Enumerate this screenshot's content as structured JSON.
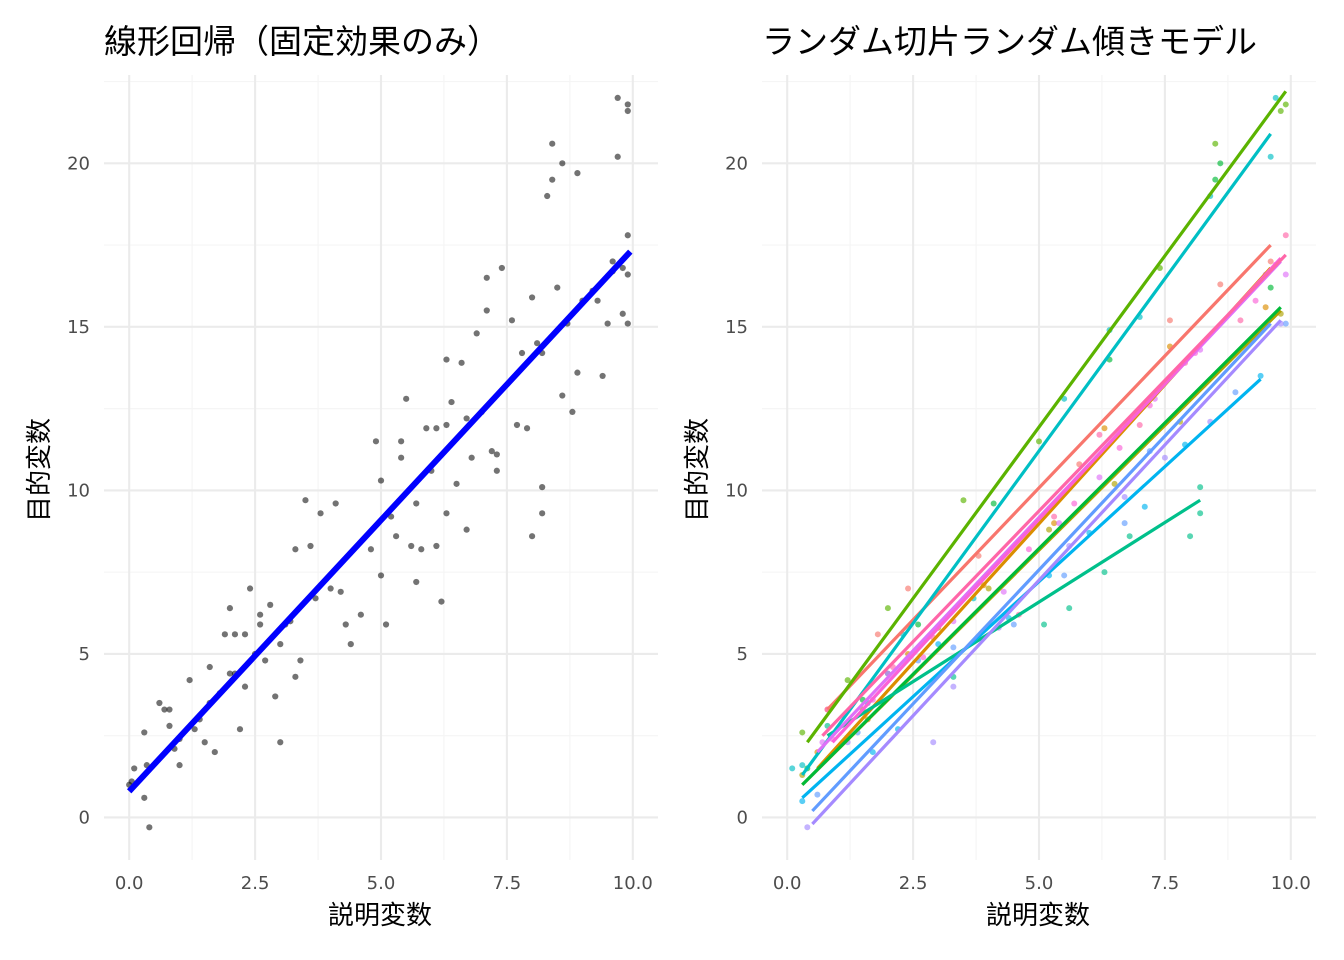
{
  "figure": {
    "panels": [
      {
        "title": "線形回帰（固定効果のみ）",
        "xlabel": "説明変数",
        "ylabel": "目的変数"
      },
      {
        "title": "ランダム切片ランダム傾きモデル",
        "xlabel": "説明変数",
        "ylabel": "目的変数"
      }
    ]
  },
  "chart_data": [
    {
      "type": "scatter",
      "title": "線形回帰（固定効果のみ）",
      "xlabel": "説明変数",
      "ylabel": "目的変数",
      "xlim": [
        -0.5,
        10.5
      ],
      "ylim": [
        -1.3,
        22.7
      ],
      "xticks": [
        "0.0",
        "2.5",
        "5.0",
        "7.5",
        "10.0"
      ],
      "yticks": [
        "0",
        "5",
        "10",
        "15",
        "20"
      ],
      "grid": true,
      "point_color": "#000000",
      "points": [
        [
          0.0,
          1.0
        ],
        [
          0.1,
          1.5
        ],
        [
          0.05,
          1.1
        ],
        [
          0.3,
          0.6
        ],
        [
          0.4,
          -0.3
        ],
        [
          0.3,
          2.6
        ],
        [
          0.35,
          1.6
        ],
        [
          0.6,
          3.5
        ],
        [
          0.7,
          3.3
        ],
        [
          0.8,
          3.3
        ],
        [
          0.8,
          2.8
        ],
        [
          0.9,
          2.1
        ],
        [
          1.0,
          1.6
        ],
        [
          1.0,
          2.4
        ],
        [
          1.2,
          4.2
        ],
        [
          1.3,
          2.7
        ],
        [
          1.4,
          3.0
        ],
        [
          1.5,
          2.3
        ],
        [
          1.6,
          3.5
        ],
        [
          1.6,
          4.6
        ],
        [
          1.7,
          2.0
        ],
        [
          1.8,
          3.8
        ],
        [
          1.9,
          5.6
        ],
        [
          2.0,
          6.4
        ],
        [
          2.1,
          4.4
        ],
        [
          2.0,
          4.4
        ],
        [
          2.1,
          5.6
        ],
        [
          2.2,
          2.7
        ],
        [
          2.3,
          4.0
        ],
        [
          2.3,
          5.6
        ],
        [
          2.4,
          7.0
        ],
        [
          2.5,
          5.0
        ],
        [
          2.6,
          6.2
        ],
        [
          2.6,
          5.9
        ],
        [
          2.7,
          4.8
        ],
        [
          2.8,
          6.5
        ],
        [
          2.9,
          3.7
        ],
        [
          3.0,
          2.3
        ],
        [
          3.0,
          5.3
        ],
        [
          3.1,
          5.9
        ],
        [
          3.2,
          6.0
        ],
        [
          3.3,
          4.3
        ],
        [
          3.3,
          8.2
        ],
        [
          3.4,
          4.8
        ],
        [
          3.5,
          9.7
        ],
        [
          3.6,
          8.3
        ],
        [
          3.7,
          6.7
        ],
        [
          3.8,
          9.3
        ],
        [
          4.0,
          7.0
        ],
        [
          4.1,
          9.6
        ],
        [
          4.2,
          6.9
        ],
        [
          4.3,
          5.9
        ],
        [
          4.4,
          5.3
        ],
        [
          4.6,
          6.2
        ],
        [
          4.8,
          8.2
        ],
        [
          4.9,
          11.5
        ],
        [
          5.0,
          7.4
        ],
        [
          5.0,
          10.3
        ],
        [
          5.1,
          5.9
        ],
        [
          5.2,
          9.2
        ],
        [
          5.3,
          8.6
        ],
        [
          5.4,
          11.0
        ],
        [
          5.4,
          11.5
        ],
        [
          5.5,
          12.8
        ],
        [
          5.6,
          8.3
        ],
        [
          5.7,
          7.2
        ],
        [
          5.7,
          9.6
        ],
        [
          5.8,
          8.2
        ],
        [
          5.9,
          11.9
        ],
        [
          6.0,
          10.6
        ],
        [
          6.1,
          8.3
        ],
        [
          6.1,
          11.9
        ],
        [
          6.2,
          6.6
        ],
        [
          6.3,
          12.0
        ],
        [
          6.3,
          14.0
        ],
        [
          6.3,
          9.3
        ],
        [
          6.4,
          12.7
        ],
        [
          6.5,
          10.2
        ],
        [
          6.6,
          13.9
        ],
        [
          6.7,
          8.8
        ],
        [
          6.7,
          12.2
        ],
        [
          6.8,
          11.0
        ],
        [
          6.9,
          14.8
        ],
        [
          7.0,
          12.4
        ],
        [
          7.1,
          15.5
        ],
        [
          7.1,
          16.5
        ],
        [
          7.2,
          11.2
        ],
        [
          7.3,
          11.1
        ],
        [
          7.3,
          10.6
        ],
        [
          7.4,
          16.8
        ],
        [
          7.6,
          15.2
        ],
        [
          7.7,
          12.0
        ],
        [
          7.8,
          14.2
        ],
        [
          7.9,
          11.9
        ],
        [
          8.0,
          8.6
        ],
        [
          8.0,
          15.9
        ],
        [
          8.1,
          14.5
        ],
        [
          8.2,
          9.3
        ],
        [
          8.2,
          10.1
        ],
        [
          8.2,
          14.2
        ],
        [
          8.3,
          19.0
        ],
        [
          8.4,
          20.6
        ],
        [
          8.4,
          19.5
        ],
        [
          8.5,
          16.2
        ],
        [
          8.6,
          20.0
        ],
        [
          8.6,
          12.9
        ],
        [
          8.7,
          15.1
        ],
        [
          8.8,
          12.4
        ],
        [
          8.9,
          13.6
        ],
        [
          8.9,
          19.7
        ],
        [
          9.0,
          15.8
        ],
        [
          9.2,
          16.1
        ],
        [
          9.3,
          15.8
        ],
        [
          9.4,
          13.5
        ],
        [
          9.5,
          15.1
        ],
        [
          9.6,
          16.7
        ],
        [
          9.6,
          17.0
        ],
        [
          9.7,
          20.2
        ],
        [
          9.7,
          22.0
        ],
        [
          9.8,
          16.8
        ],
        [
          9.8,
          15.4
        ],
        [
          9.9,
          21.6
        ],
        [
          9.9,
          21.8
        ],
        [
          9.9,
          17.8
        ],
        [
          9.9,
          15.1
        ],
        [
          9.9,
          16.6
        ]
      ],
      "fit_line": {
        "color": "#0000ff",
        "x": [
          0.0,
          9.95
        ],
        "y": [
          0.8,
          17.3
        ]
      }
    },
    {
      "type": "scatter",
      "title": "ランダム切片ランダム傾きモデル",
      "xlabel": "説明変数",
      "ylabel": "目的変数",
      "xlim": [
        -0.5,
        10.5
      ],
      "ylim": [
        -1.3,
        22.7
      ],
      "xticks": [
        "0.0",
        "2.5",
        "5.0",
        "7.5",
        "10.0"
      ],
      "yticks": [
        "0",
        "5",
        "10",
        "15",
        "20"
      ],
      "grid": true,
      "series": [
        {
          "color": "#F8766D",
          "line": [
            [
              0.8,
              3.3
            ],
            [
              9.6,
              17.5
            ]
          ],
          "points": [
            [
              0.8,
              3.3
            ],
            [
              1.8,
              5.6
            ],
            [
              2.4,
              7.0
            ],
            [
              3.8,
              8.0
            ],
            [
              5.8,
              10.8
            ],
            [
              7.6,
              15.2
            ],
            [
              8.6,
              16.3
            ],
            [
              9.6,
              17.0
            ]
          ]
        },
        {
          "color": "#DB8E00",
          "line": [
            [
              0.6,
              1.5
            ],
            [
              9.6,
              16.8
            ]
          ],
          "points": [
            [
              0.6,
              2.0
            ],
            [
              1.6,
              3.0
            ],
            [
              2.4,
              5.0
            ],
            [
              3.9,
              7.1
            ],
            [
              5.3,
              9.0
            ],
            [
              6.3,
              11.9
            ],
            [
              7.6,
              14.4
            ],
            [
              9.5,
              15.6
            ]
          ]
        },
        {
          "color": "#AEA200",
          "line": [
            [
              0.3,
              1.0
            ],
            [
              9.8,
              15.5
            ]
          ],
          "points": [
            [
              0.3,
              1.3
            ],
            [
              1.5,
              3.3
            ],
            [
              3.0,
              5.8
            ],
            [
              4.0,
              7.0
            ],
            [
              5.2,
              8.8
            ],
            [
              6.5,
              10.2
            ],
            [
              7.8,
              12.1
            ],
            [
              9.8,
              15.4
            ]
          ]
        },
        {
          "color": "#5BB300",
          "line": [
            [
              0.4,
              2.3
            ],
            [
              9.9,
              22.2
            ]
          ],
          "points": [
            [
              0.3,
              2.6
            ],
            [
              1.2,
              4.2
            ],
            [
              2.0,
              6.4
            ],
            [
              3.5,
              9.7
            ],
            [
              5.0,
              11.5
            ],
            [
              7.4,
              16.8
            ],
            [
              8.5,
              20.6
            ],
            [
              9.9,
              21.8
            ],
            [
              9.8,
              21.6
            ]
          ]
        },
        {
          "color": "#00BA38",
          "line": [
            [
              0.3,
              1.0
            ],
            [
              9.8,
              15.6
            ]
          ],
          "points": [
            [
              0.4,
              1.5
            ],
            [
              1.5,
              3.6
            ],
            [
              2.6,
              5.9
            ],
            [
              4.1,
              9.6
            ],
            [
              6.4,
              14.0
            ],
            [
              8.5,
              19.5
            ],
            [
              8.6,
              20.0
            ],
            [
              9.6,
              16.2
            ]
          ]
        },
        {
          "color": "#00C08B",
          "line": [
            [
              0.8,
              2.5
            ],
            [
              8.2,
              9.7
            ]
          ],
          "points": [
            [
              0.8,
              2.8
            ],
            [
              2.0,
              4.4
            ],
            [
              3.3,
              4.3
            ],
            [
              5.1,
              5.9
            ],
            [
              5.6,
              6.4
            ],
            [
              6.3,
              7.5
            ],
            [
              6.8,
              8.6
            ],
            [
              8.0,
              8.6
            ],
            [
              8.2,
              9.3
            ],
            [
              8.2,
              10.1
            ]
          ]
        },
        {
          "color": "#00BFC4",
          "line": [
            [
              0.3,
              1.3
            ],
            [
              9.6,
              20.9
            ]
          ],
          "points": [
            [
              0.1,
              1.5
            ],
            [
              0.3,
              1.6
            ],
            [
              1.6,
              3.5
            ],
            [
              2.3,
              5.6
            ],
            [
              3.7,
              6.7
            ],
            [
              5.5,
              12.8
            ],
            [
              6.4,
              14.9
            ],
            [
              7.0,
              15.3
            ],
            [
              8.4,
              19.0
            ],
            [
              9.6,
              20.2
            ],
            [
              9.7,
              22.0
            ]
          ]
        },
        {
          "color": "#00B4F0",
          "line": [
            [
              0.3,
              0.6
            ],
            [
              9.4,
              13.4
            ]
          ],
          "points": [
            [
              0.3,
              0.5
            ],
            [
              1.7,
              2.0
            ],
            [
              2.2,
              2.7
            ],
            [
              3.0,
              5.3
            ],
            [
              4.4,
              6.1
            ],
            [
              5.2,
              7.4
            ],
            [
              6.0,
              8.7
            ],
            [
              7.1,
              9.5
            ],
            [
              7.9,
              11.4
            ],
            [
              9.4,
              13.5
            ]
          ]
        },
        {
          "color": "#619CFF",
          "line": [
            [
              0.5,
              0.2
            ],
            [
              9.6,
              15.1
            ]
          ],
          "points": [
            [
              0.6,
              0.7
            ],
            [
              1.4,
              2.6
            ],
            [
              2.6,
              4.8
            ],
            [
              3.3,
              5.2
            ],
            [
              4.5,
              5.9
            ],
            [
              5.5,
              7.4
            ],
            [
              6.7,
              9.0
            ],
            [
              7.2,
              11.2
            ],
            [
              8.9,
              13.0
            ],
            [
              9.9,
              15.1
            ]
          ]
        },
        {
          "color": "#A58AFF",
          "line": [
            [
              0.5,
              -0.2
            ],
            [
              9.8,
              15.2
            ]
          ],
          "points": [
            [
              0.4,
              -0.3
            ],
            [
              1.2,
              2.3
            ],
            [
              2.9,
              2.3
            ],
            [
              3.3,
              4.0
            ],
            [
              4.2,
              5.8
            ],
            [
              5.6,
              8.3
            ],
            [
              6.7,
              9.8
            ],
            [
              7.5,
              11.0
            ],
            [
              8.4,
              12.1
            ],
            [
              9.8,
              15.1
            ]
          ]
        },
        {
          "color": "#DF70F8",
          "line": [
            [
              0.6,
              2.0
            ],
            [
              9.8,
              17.0
            ]
          ],
          "points": [
            [
              0.7,
              2.3
            ],
            [
              2.0,
              4.4
            ],
            [
              3.3,
              6.0
            ],
            [
              4.3,
              6.9
            ],
            [
              5.4,
              9.0
            ],
            [
              6.2,
              10.4
            ],
            [
              7.3,
              12.8
            ],
            [
              8.2,
              14.3
            ],
            [
              9.5,
              16.6
            ],
            [
              9.9,
              16.6
            ]
          ]
        },
        {
          "color": "#FB61D7",
          "line": [
            [
              0.9,
              2.3
            ],
            [
              9.8,
              17.1
            ]
          ],
          "points": [
            [
              0.9,
              2.4
            ],
            [
              1.7,
              3.6
            ],
            [
              2.7,
              4.9
            ],
            [
              4.8,
              8.2
            ],
            [
              5.7,
              9.6
            ],
            [
              6.6,
              11.3
            ],
            [
              7.2,
              12.6
            ],
            [
              8.1,
              14.2
            ],
            [
              9.3,
              15.8
            ],
            [
              9.7,
              16.9
            ]
          ]
        },
        {
          "color": "#FF66A8",
          "line": [
            [
              0.7,
              2.5
            ],
            [
              9.9,
              17.2
            ]
          ],
          "points": [
            [
              0.8,
              3.3
            ],
            [
              2.1,
              4.6
            ],
            [
              2.9,
              5.5
            ],
            [
              4.6,
              6.2
            ],
            [
              5.3,
              9.2
            ],
            [
              6.2,
              11.7
            ],
            [
              7.0,
              12.0
            ],
            [
              7.9,
              13.9
            ],
            [
              9.0,
              15.2
            ],
            [
              9.9,
              17.8
            ]
          ]
        }
      ]
    }
  ]
}
